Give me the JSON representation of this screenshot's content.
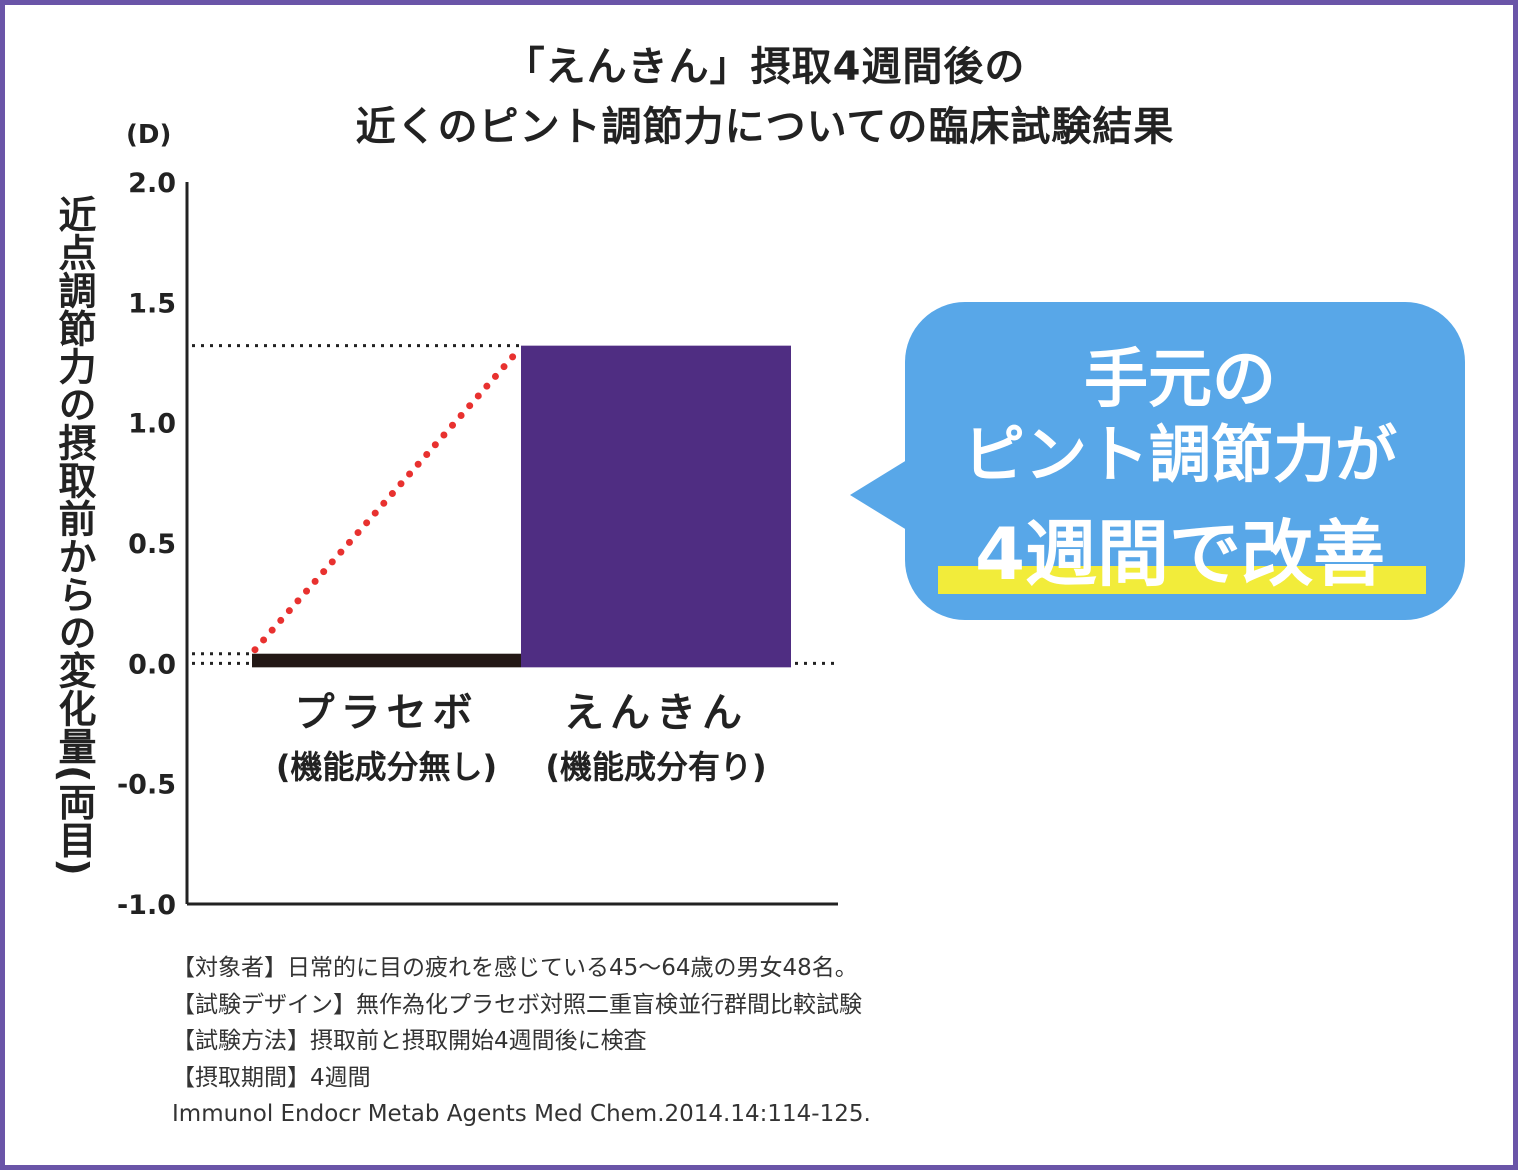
{
  "title_lines": [
    "「えんきん」摂取4週間後の",
    "近くのピント調節力についての臨床試験結果"
  ],
  "unit": "(D)",
  "ylabel": "近点調節力の摂取前からの変化量(両目)",
  "colors": {
    "frame": "#6a55a8",
    "enkin_bar": "#4f2d82",
    "placebo_bar": "#231815",
    "dotted_line": "#e8312f",
    "bubble": "#58a7e8",
    "highlight": "#f2ec3a"
  },
  "chart_data": {
    "type": "bar",
    "title": "「えんきん」摂取4週間後の 近くのピント調節力についての臨床試験結果",
    "ylabel": "近点調節力の摂取前からの変化量(両目)",
    "unit": "(D)",
    "ylim": [
      -1.0,
      2.0
    ],
    "yticks": [
      "2.0",
      "1.5",
      "1.0",
      "0.5",
      "0.0",
      "-0.5",
      "-1.0"
    ],
    "categories": [
      {
        "name": "プラセボ",
        "sub": "(機能成分無し)"
      },
      {
        "name": "えんきん",
        "sub": "(機能成分有り)"
      }
    ],
    "values": [
      0.04,
      1.32
    ]
  },
  "callout": {
    "line1": "手元の",
    "line2": "ピント調節力が",
    "line3": "4週間で改善"
  },
  "notes": [
    "【対象者】日常的に目の疲れを感じている45〜64歳の男女48名。",
    "【試験デザイン】無作為化プラセボ対照二重盲検並行群間比較試験",
    "【試験方法】摂取前と摂取開始4週間後に検査",
    "【摂取期間】4週間",
    "Immunol Endocr Metab Agents Med Chem.2014.14:114-125."
  ]
}
